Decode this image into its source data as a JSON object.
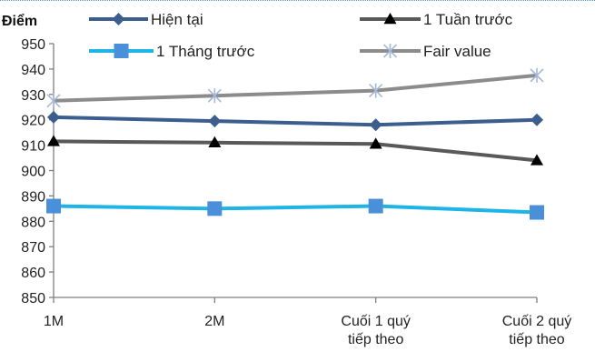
{
  "chart_data": {
    "type": "line",
    "ylabel": "Điểm",
    "ylim": [
      850,
      950
    ],
    "yticks": [
      850,
      860,
      870,
      880,
      890,
      900,
      910,
      920,
      930,
      940,
      950
    ],
    "categories": [
      [
        "1M"
      ],
      [
        "2M"
      ],
      [
        "Cuối 1 quý",
        "tiếp theo"
      ],
      [
        "Cuối 2 quý",
        "tiếp theo"
      ]
    ],
    "series": [
      {
        "name": "Hiện tại",
        "values": [
          921,
          919.5,
          918,
          920
        ],
        "color": "#3b5e8e",
        "marker": "diamond"
      },
      {
        "name": "1 Tuần trước",
        "values": [
          911.5,
          911,
          910.5,
          904
        ],
        "color": "#595959",
        "marker": "triangle"
      },
      {
        "name": "1 Tháng trước",
        "values": [
          886,
          885,
          886,
          883.5
        ],
        "color": "#1fb4e8",
        "marker": "square"
      },
      {
        "name": "Fair value",
        "values": [
          927.5,
          929.5,
          931.5,
          937.5
        ],
        "color": "#8c8c8c",
        "marker": "star"
      }
    ],
    "grid": false,
    "legend_position": "top"
  }
}
